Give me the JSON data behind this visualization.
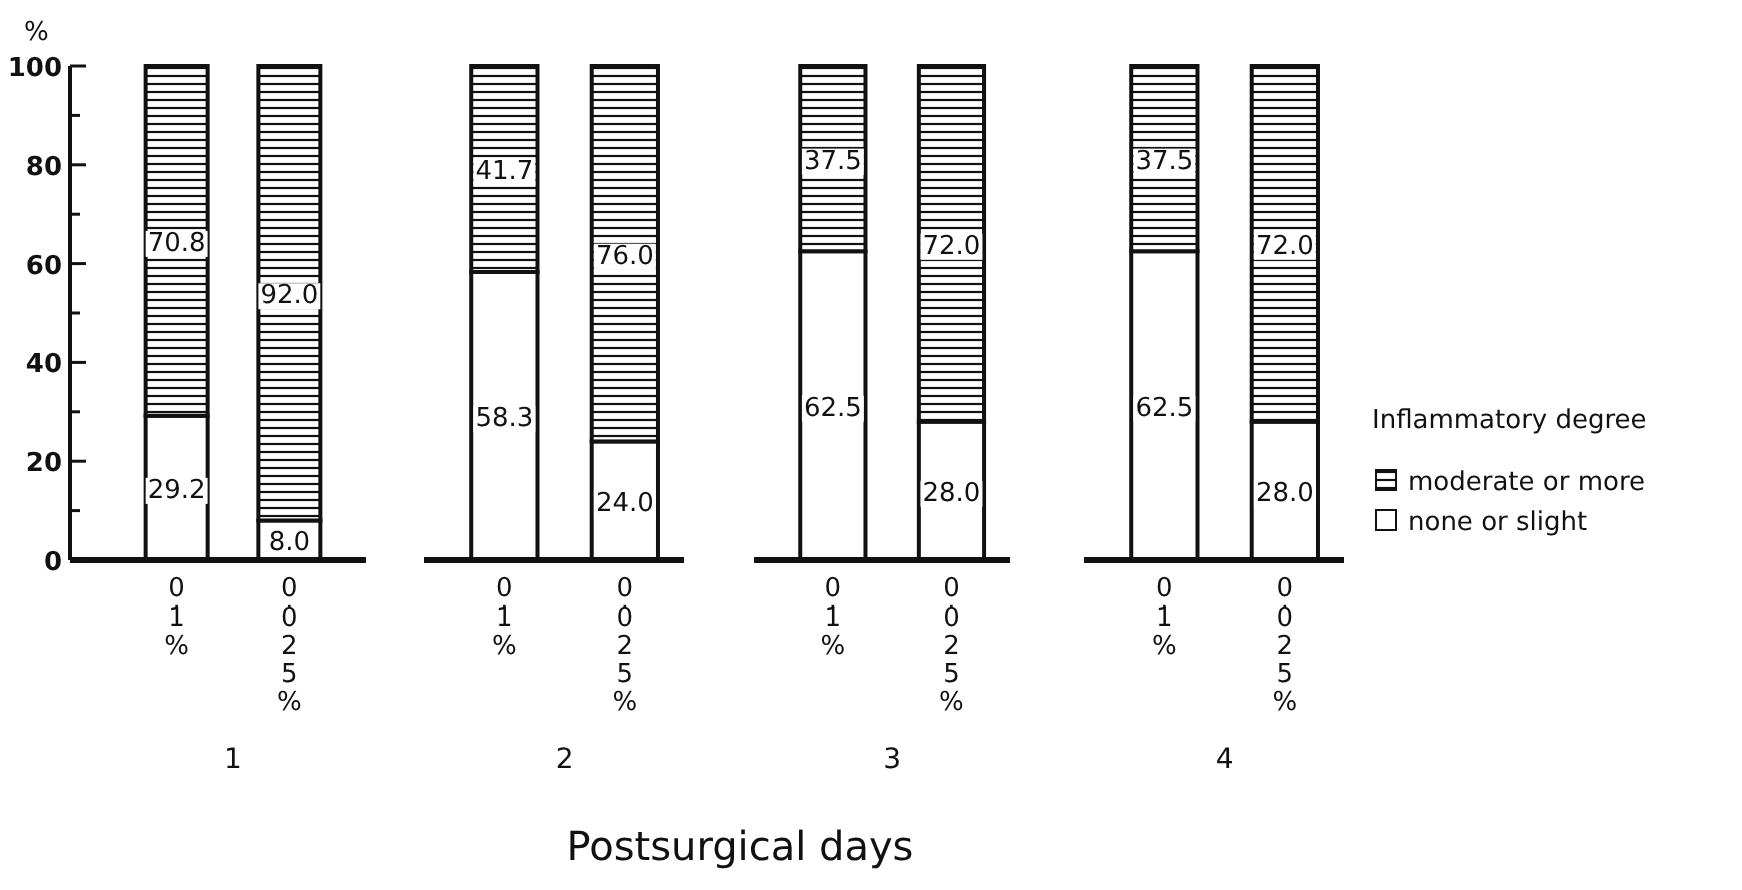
{
  "chart_data": [
    {
      "type": "bar",
      "stacked": true,
      "categories": [
        "0.1%",
        "0.025%"
      ],
      "xlabel": "1",
      "ylabel": "%",
      "ylim": [
        0,
        100
      ],
      "yticks": [
        0,
        {
          "value": 10,
          "label": null
        },
        20,
        {
          "value": 30,
          "label": null
        },
        40,
        {
          "value": 50,
          "label": null
        },
        60,
        {
          "value": 70,
          "label": null
        },
        80,
        {
          "value": 90,
          "label": null
        },
        100
      ],
      "series": [
        {
          "color": "#ffffff",
          "values": [
            29.2,
            8.0
          ],
          "value_labels": [
            "29.2",
            "8.0"
          ]
        },
        {
          "color": "#111111",
          "values": [
            70.8,
            92.0
          ],
          "value_labels": [
            "70.8",
            "92.0"
          ]
        }
      ]
    },
    {
      "type": "bar",
      "stacked": true,
      "categories": [
        "0.1%",
        "0.025%"
      ],
      "xlabel": "2",
      "ylim": [
        0,
        100
      ],
      "tick_labels": "x",
      "annotations": [
        "Postsurgical days"
      ],
      "series": [
        {
          "color": "#ffffff",
          "values": [
            58.3,
            24.0
          ],
          "value_labels": [
            "58.3",
            "24.0"
          ]
        },
        {
          "color": "#111111",
          "values": [
            41.7,
            76.0
          ],
          "value_labels": [
            "41.7",
            "76.0"
          ]
        }
      ]
    },
    {
      "type": "bar",
      "stacked": true,
      "categories": [
        "0.1%",
        "0.025%"
      ],
      "xlabel": "3",
      "ylim": [
        0,
        100
      ],
      "tick_labels": "x",
      "series": [
        {
          "color": "#ffffff",
          "values": [
            62.5,
            28.0
          ],
          "value_labels": [
            "62.5",
            "28.0"
          ]
        },
        {
          "color": "#111111",
          "values": [
            37.5,
            72.0
          ],
          "value_labels": [
            "37.5",
            "72.0"
          ]
        }
      ]
    },
    {
      "type": "bar",
      "stacked": true,
      "categories": [
        "0.1%",
        "0.025%"
      ],
      "xlabel": "4",
      "ylim": [
        0,
        100
      ],
      "tick_labels": "x",
      "legend": "right",
      "legend_title": "Inflammatory degree",
      "series": [
        {
          "name": "none or slight",
          "color": "#ffffff",
          "values": [
            62.5,
            28.0
          ],
          "value_labels": [
            "62.5",
            "28.0"
          ]
        },
        {
          "name": "moderate or more",
          "color": "#111111",
          "values": [
            37.5,
            72.0
          ],
          "value_labels": [
            "37.5",
            "72.0"
          ]
        }
      ]
    }
  ]
}
